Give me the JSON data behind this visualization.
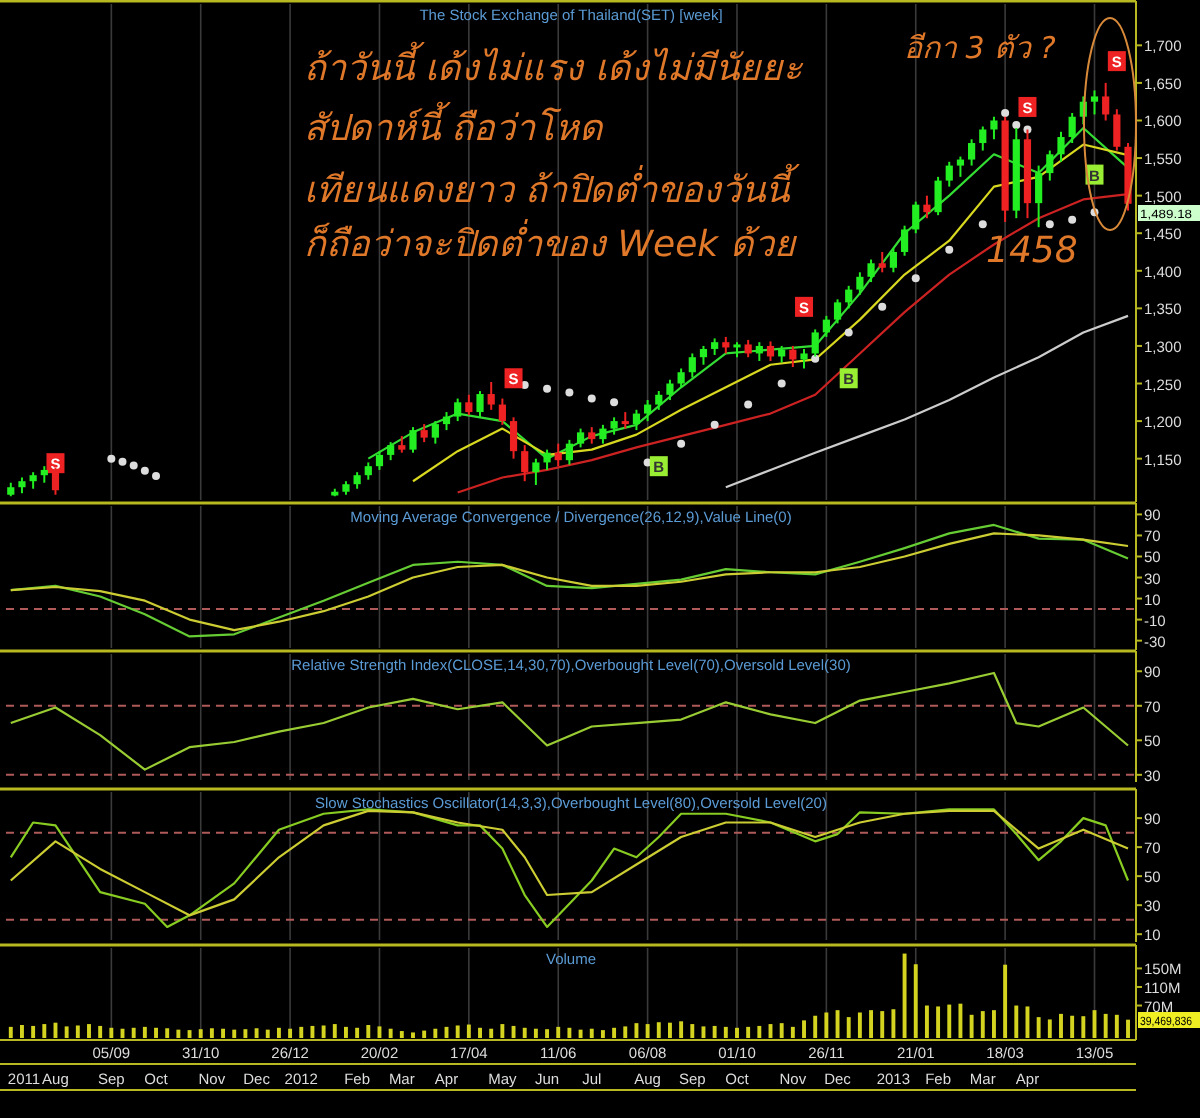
{
  "chart_data": [
    {
      "type": "candlestick",
      "title": "The Stock Exchange of Thailand(SET) [week]",
      "grid": "x",
      "tick_labels": "y",
      "xlim": [
        "2011-07-01",
        "2013-06-08"
      ],
      "ylim": [
        1095,
        1755
      ],
      "xticks": [
        "2011-09-05",
        "2011-10-31",
        "2011-12-26",
        "2012-02-20",
        "2012-04-16",
        "2012-06-11",
        "2012-08-06",
        "2012-10-01",
        "2012-11-26",
        "2013-01-21",
        "2013-03-18",
        "2013-05-13"
      ],
      "yticks": [
        {
          "value": 1150,
          "label": "1,150"
        },
        {
          "value": 1200,
          "label": "1,200"
        },
        {
          "value": 1250,
          "label": "1,250"
        },
        {
          "value": 1300,
          "label": "1,300"
        },
        {
          "value": 1350,
          "label": "1,350"
        },
        {
          "value": 1400,
          "label": "1,400"
        },
        {
          "value": 1450,
          "label": "1,450"
        },
        {
          "value": 1500,
          "label": "1,500"
        },
        {
          "value": 1550,
          "label": "1,550"
        },
        {
          "value": 1600,
          "label": "1,600"
        },
        {
          "value": 1650,
          "label": "1,650"
        },
        {
          "value": 1700,
          "label": "1,700"
        }
      ],
      "x": [
        "2011-07-04",
        "2011-07-11",
        "2011-07-18",
        "2011-07-25",
        "2011-08-01",
        "2012-01-23",
        "2012-01-30",
        "2012-02-06",
        "2012-02-13",
        "2012-02-20",
        "2012-02-27",
        "2012-03-05",
        "2012-03-12",
        "2012-03-19",
        "2012-03-26",
        "2012-04-02",
        "2012-04-09",
        "2012-04-16",
        "2012-04-23",
        "2012-04-30",
        "2012-05-07",
        "2012-05-14",
        "2012-05-21",
        "2012-05-28",
        "2012-06-04",
        "2012-06-11",
        "2012-06-18",
        "2012-06-25",
        "2012-07-02",
        "2012-07-09",
        "2012-07-16",
        "2012-07-23",
        "2012-07-30",
        "2012-08-06",
        "2012-08-13",
        "2012-08-20",
        "2012-08-27",
        "2012-09-03",
        "2012-09-10",
        "2012-09-17",
        "2012-09-24",
        "2012-10-01",
        "2012-10-08",
        "2012-10-15",
        "2012-10-22",
        "2012-10-29",
        "2012-11-05",
        "2012-11-12",
        "2012-11-19",
        "2012-11-26",
        "2012-12-03",
        "2012-12-10",
        "2012-12-17",
        "2012-12-24",
        "2012-12-31",
        "2013-01-07",
        "2013-01-14",
        "2013-01-21",
        "2013-01-28",
        "2013-02-04",
        "2013-02-11",
        "2013-02-18",
        "2013-02-25",
        "2013-03-04",
        "2013-03-11",
        "2013-03-18",
        "2013-03-25",
        "2013-04-01",
        "2013-04-08",
        "2013-04-15",
        "2013-04-22",
        "2013-04-29",
        "2013-05-06",
        "2013-05-13",
        "2013-05-20",
        "2013-05-27",
        "2013-06-03"
      ],
      "ohlc": [
        [
          1102,
          1118,
          1100,
          1112
        ],
        [
          1112,
          1125,
          1104,
          1120
        ],
        [
          1120,
          1132,
          1110,
          1128
        ],
        [
          1128,
          1140,
          1118,
          1135
        ],
        [
          1135,
          1138,
          1102,
          1108
        ],
        [
          1101,
          1110,
          1100,
          1106
        ],
        [
          1106,
          1120,
          1102,
          1116
        ],
        [
          1116,
          1132,
          1110,
          1128
        ],
        [
          1128,
          1145,
          1122,
          1140
        ],
        [
          1140,
          1160,
          1135,
          1155
        ],
        [
          1155,
          1172,
          1148,
          1168
        ],
        [
          1168,
          1180,
          1158,
          1162
        ],
        [
          1162,
          1192,
          1158,
          1188
        ],
        [
          1188,
          1196,
          1172,
          1178
        ],
        [
          1178,
          1200,
          1170,
          1196
        ],
        [
          1196,
          1212,
          1188,
          1206
        ],
        [
          1206,
          1230,
          1200,
          1225
        ],
        [
          1225,
          1235,
          1208,
          1212
        ],
        [
          1212,
          1240,
          1205,
          1236
        ],
        [
          1236,
          1252,
          1215,
          1222
        ],
        [
          1222,
          1230,
          1195,
          1200
        ],
        [
          1200,
          1205,
          1150,
          1160
        ],
        [
          1160,
          1168,
          1120,
          1132
        ],
        [
          1132,
          1150,
          1115,
          1145
        ],
        [
          1145,
          1162,
          1135,
          1158
        ],
        [
          1158,
          1170,
          1140,
          1148
        ],
        [
          1148,
          1175,
          1142,
          1170
        ],
        [
          1170,
          1190,
          1165,
          1185
        ],
        [
          1185,
          1192,
          1170,
          1176
        ],
        [
          1176,
          1195,
          1170,
          1190
        ],
        [
          1190,
          1205,
          1182,
          1200
        ],
        [
          1200,
          1212,
          1190,
          1196
        ],
        [
          1196,
          1215,
          1188,
          1210
        ],
        [
          1210,
          1228,
          1200,
          1222
        ],
        [
          1222,
          1240,
          1215,
          1235
        ],
        [
          1235,
          1255,
          1228,
          1250
        ],
        [
          1250,
          1270,
          1245,
          1265
        ],
        [
          1265,
          1290,
          1258,
          1285
        ],
        [
          1285,
          1300,
          1275,
          1296
        ],
        [
          1296,
          1310,
          1288,
          1305
        ],
        [
          1305,
          1312,
          1290,
          1298
        ],
        [
          1298,
          1305,
          1285,
          1302
        ],
        [
          1302,
          1308,
          1285,
          1290
        ],
        [
          1290,
          1305,
          1280,
          1300
        ],
        [
          1300,
          1306,
          1280,
          1286
        ],
        [
          1286,
          1300,
          1278,
          1295
        ],
        [
          1295,
          1300,
          1272,
          1282
        ],
        [
          1282,
          1296,
          1270,
          1290
        ],
        [
          1290,
          1322,
          1286,
          1318
        ],
        [
          1318,
          1340,
          1312,
          1335
        ],
        [
          1335,
          1362,
          1330,
          1358
        ],
        [
          1358,
          1380,
          1350,
          1375
        ],
        [
          1375,
          1398,
          1368,
          1392
        ],
        [
          1392,
          1415,
          1385,
          1410
        ],
        [
          1410,
          1425,
          1398,
          1404
        ],
        [
          1404,
          1430,
          1398,
          1425
        ],
        [
          1425,
          1460,
          1420,
          1455
        ],
        [
          1455,
          1492,
          1450,
          1488
        ],
        [
          1488,
          1500,
          1470,
          1478
        ],
        [
          1478,
          1525,
          1474,
          1520
        ],
        [
          1520,
          1545,
          1512,
          1540
        ],
        [
          1540,
          1552,
          1525,
          1548
        ],
        [
          1548,
          1575,
          1540,
          1570
        ],
        [
          1570,
          1592,
          1560,
          1588
        ],
        [
          1588,
          1605,
          1575,
          1600
        ],
        [
          1600,
          1605,
          1465,
          1480
        ],
        [
          1480,
          1590,
          1470,
          1575
        ],
        [
          1575,
          1588,
          1470,
          1490
        ],
        [
          1490,
          1540,
          1458,
          1530
        ],
        [
          1530,
          1560,
          1520,
          1555
        ],
        [
          1555,
          1585,
          1545,
          1578
        ],
        [
          1578,
          1610,
          1570,
          1605
        ],
        [
          1605,
          1632,
          1595,
          1625
        ],
        [
          1625,
          1640,
          1608,
          1632
        ],
        [
          1632,
          1650,
          1600,
          1608
        ],
        [
          1608,
          1615,
          1560,
          1565
        ],
        [
          1565,
          1570,
          1480,
          1489.18
        ]
      ],
      "series": [
        {
          "type": "line",
          "color": "#33dd33",
          "x": [
            "2012-02-13",
            "2012-03-12",
            "2012-04-09",
            "2012-05-07",
            "2012-06-04",
            "2012-07-02",
            "2012-07-30",
            "2012-08-27",
            "2012-09-24",
            "2012-10-22",
            "2012-11-19",
            "2012-12-17",
            "2013-01-14",
            "2013-02-11",
            "2013-03-11",
            "2013-04-08",
            "2013-05-06",
            "2013-06-03"
          ],
          "values": [
            1150,
            1185,
            1210,
            1200,
            1150,
            1180,
            1195,
            1245,
            1290,
            1295,
            1300,
            1370,
            1450,
            1500,
            1555,
            1530,
            1590,
            1537
          ]
        },
        {
          "type": "line",
          "color": "#d8d820",
          "x": [
            "2012-03-12",
            "2012-04-09",
            "2012-05-07",
            "2012-06-04",
            "2012-07-02",
            "2012-07-30",
            "2012-08-27",
            "2012-09-24",
            "2012-10-22",
            "2012-11-19",
            "2012-12-17",
            "2013-01-14",
            "2013-02-11",
            "2013-03-11",
            "2013-04-08",
            "2013-05-06",
            "2013-06-03"
          ],
          "values": [
            1120,
            1160,
            1190,
            1155,
            1162,
            1182,
            1215,
            1245,
            1275,
            1282,
            1335,
            1395,
            1440,
            1512,
            1525,
            1568,
            1554
          ]
        },
        {
          "type": "line",
          "color": "#cc2222",
          "x": [
            "2012-04-09",
            "2012-05-07",
            "2012-06-04",
            "2012-07-02",
            "2012-07-30",
            "2012-08-27",
            "2012-09-24",
            "2012-10-22",
            "2012-11-19",
            "2012-12-17",
            "2013-01-14",
            "2013-02-11",
            "2013-03-11",
            "2013-04-08",
            "2013-05-06",
            "2013-06-03"
          ],
          "values": [
            1105,
            1125,
            1135,
            1148,
            1165,
            1180,
            1195,
            1210,
            1235,
            1290,
            1345,
            1395,
            1435,
            1470,
            1495,
            1502
          ]
        },
        {
          "type": "line",
          "color": "#cccccc",
          "x": [
            "2012-09-24",
            "2012-10-22",
            "2012-11-19",
            "2012-12-17",
            "2013-01-14",
            "2013-02-11",
            "2013-03-11",
            "2013-04-08",
            "2013-05-06",
            "2013-06-03"
          ],
          "values": [
            1112,
            1135,
            1158,
            1180,
            1202,
            1228,
            1258,
            1285,
            1318,
            1340
          ]
        },
        {
          "type": "scatter",
          "color": "#dddddd",
          "marker": "circle",
          "x": [
            "2011-09-05",
            "2011-09-12",
            "2011-09-19",
            "2011-09-26",
            "2011-10-03",
            "2012-05-21",
            "2012-06-04",
            "2012-06-18",
            "2012-07-02",
            "2012-07-16",
            "2012-08-06",
            "2012-08-27",
            "2012-09-17",
            "2012-10-08",
            "2012-10-29",
            "2012-11-19",
            "2012-12-10",
            "2012-12-31",
            "2013-01-21",
            "2013-02-11",
            "2013-03-04",
            "2013-03-18",
            "2013-03-25",
            "2013-04-01",
            "2013-04-15",
            "2013-04-29",
            "2013-05-13"
          ],
          "values": [
            1150,
            1146,
            1141,
            1134,
            1127,
            1248,
            1243,
            1238,
            1230,
            1225,
            1145,
            1170,
            1195,
            1222,
            1250,
            1283,
            1318,
            1352,
            1390,
            1428,
            1462,
            1610,
            1594,
            1588,
            1462,
            1468,
            1478
          ]
        },
        {
          "type": "scatter",
          "color": "#ee2222",
          "marker": "square",
          "x": [
            "2011-08-01",
            "2012-05-14",
            "2012-11-12",
            "2013-04-01",
            "2013-05-27"
          ],
          "values": [
            1144,
            1257,
            1352,
            1618,
            1679
          ],
          "value_labels": [
            "S",
            "S",
            "S",
            "S",
            "S"
          ]
        },
        {
          "type": "scatter",
          "color": "#99ee33",
          "marker": "square",
          "x": [
            "2012-08-13",
            "2012-12-10",
            "2013-05-13"
          ],
          "values": [
            1140,
            1257,
            1528
          ],
          "value_labels": [
            "B",
            "B",
            "B"
          ]
        }
      ],
      "annotations": [
        "ถ้าวันนี้ เด้งไม่แรง เด้งไม่มีนัยยะ",
        "สัปดาห์นี้ ถือว่าโหด",
        "เทียนแดงยาว ถ้าปิดต่ำของวันนี้",
        "ก็ถือว่าจะปิดต่ำของ Week ด้วย",
        "อีกา 3 ตัว ?",
        "1458",
        "1,489.18"
      ]
    },
    {
      "type": "line",
      "title": "Moving Average Convergence / Divergence(26,12,9),Value Line(0)",
      "grid": "x",
      "tick_labels": "y",
      "xlim": [
        "2011-07-01",
        "2013-06-08"
      ],
      "ylim": [
        -37,
        98
      ],
      "xticks": [
        "2011-09-05",
        "2011-10-31",
        "2011-12-26",
        "2012-02-20",
        "2012-04-16",
        "2012-06-11",
        "2012-08-06",
        "2012-10-01",
        "2012-11-26",
        "2013-01-21",
        "2013-03-18",
        "2013-05-13"
      ],
      "yticks": [
        90,
        70,
        50,
        30,
        10,
        -10,
        -30
      ],
      "ref_lines": [
        {
          "axis": "y",
          "value": 0,
          "color": "#b05a5a",
          "line_style": "dashed"
        }
      ],
      "series": [
        {
          "color": "#66cc33",
          "x": [
            "2011-07-04",
            "2011-08-01",
            "2011-08-29",
            "2011-09-26",
            "2011-10-24",
            "2011-11-21",
            "2011-12-19",
            "2012-01-16",
            "2012-02-13",
            "2012-03-12",
            "2012-04-09",
            "2012-05-07",
            "2012-06-04",
            "2012-07-02",
            "2012-07-30",
            "2012-08-27",
            "2012-09-24",
            "2012-10-22",
            "2012-11-19",
            "2012-12-17",
            "2013-01-14",
            "2013-02-11",
            "2013-03-11",
            "2013-04-08",
            "2013-05-06",
            "2013-06-03"
          ],
          "values": [
            18,
            22,
            12,
            -5,
            -26,
            -24,
            -8,
            8,
            25,
            42,
            45,
            42,
            22,
            20,
            24,
            28,
            38,
            35,
            33,
            45,
            58,
            72,
            80,
            67,
            66,
            48
          ]
        },
        {
          "color": "#cccc33",
          "x": [
            "2011-07-04",
            "2011-08-01",
            "2011-08-29",
            "2011-09-26",
            "2011-10-24",
            "2011-11-21",
            "2011-12-19",
            "2012-01-16",
            "2012-02-13",
            "2012-03-12",
            "2012-04-09",
            "2012-05-07",
            "2012-06-04",
            "2012-07-02",
            "2012-07-30",
            "2012-08-27",
            "2012-09-24",
            "2012-10-22",
            "2012-11-19",
            "2012-12-17",
            "2013-01-14",
            "2013-02-11",
            "2013-03-11",
            "2013-04-08",
            "2013-05-06",
            "2013-06-03"
          ],
          "values": [
            18,
            21,
            17,
            8,
            -10,
            -20,
            -12,
            -2,
            12,
            30,
            40,
            42,
            30,
            22,
            22,
            26,
            33,
            35,
            35,
            40,
            50,
            62,
            72,
            70,
            66,
            60
          ]
        }
      ]
    },
    {
      "type": "line",
      "title": "Relative Strength Index(CLOSE,14,30,70),Overbought Level(70),Oversold Level(30)",
      "grid": "x",
      "tick_labels": "y",
      "xlim": [
        "2011-07-01",
        "2013-06-08"
      ],
      "ylim": [
        27,
        100
      ],
      "xticks": [
        "2011-09-05",
        "2011-10-31",
        "2011-12-26",
        "2012-02-20",
        "2012-04-16",
        "2012-06-11",
        "2012-08-06",
        "2012-10-01",
        "2012-11-26",
        "2013-01-21",
        "2013-03-18",
        "2013-05-13"
      ],
      "yticks": [
        30,
        50,
        70,
        90
      ],
      "ref_lines": [
        {
          "axis": "y",
          "value": 70,
          "color": "#b05a5a",
          "line_style": "dashed"
        },
        {
          "axis": "y",
          "value": 30,
          "color": "#b05a5a",
          "line_style": "dashed"
        }
      ],
      "series": [
        {
          "color": "#99cc33",
          "x": [
            "2011-07-04",
            "2011-08-01",
            "2011-08-29",
            "2011-09-26",
            "2011-10-24",
            "2011-11-21",
            "2011-12-19",
            "2012-01-16",
            "2012-02-13",
            "2012-03-12",
            "2012-04-09",
            "2012-05-07",
            "2012-06-04",
            "2012-07-02",
            "2012-07-30",
            "2012-08-27",
            "2012-09-24",
            "2012-10-22",
            "2012-11-19",
            "2012-12-17",
            "2013-01-14",
            "2013-02-11",
            "2013-03-11",
            "2013-03-25",
            "2013-04-08",
            "2013-05-06",
            "2013-06-03"
          ],
          "values": [
            60,
            69,
            53,
            33,
            46,
            49,
            55,
            60,
            69,
            74,
            68,
            72,
            47,
            58,
            60,
            62,
            72,
            65,
            60,
            73,
            78,
            83,
            89,
            60,
            58,
            69,
            47
          ]
        }
      ]
    },
    {
      "type": "line",
      "title": "Slow Stochastics Oscillator(14,3,3),Overbought Level(80),Oversold Level(20)",
      "grid": "x",
      "tick_labels": "y",
      "xlim": [
        "2011-07-01",
        "2013-06-08"
      ],
      "ylim": [
        6,
        108
      ],
      "xticks": [
        "2011-09-05",
        "2011-10-31",
        "2011-12-26",
        "2012-02-20",
        "2012-04-16",
        "2012-06-11",
        "2012-08-06",
        "2012-10-01",
        "2012-11-26",
        "2013-01-21",
        "2013-03-18",
        "2013-05-13"
      ],
      "yticks": [
        10,
        30,
        50,
        70,
        90
      ],
      "ref_lines": [
        {
          "axis": "y",
          "value": 80,
          "color": "#b05a5a",
          "line_style": "dashed"
        },
        {
          "axis": "y",
          "value": 20,
          "color": "#b05a5a",
          "line_style": "dashed"
        }
      ],
      "series": [
        {
          "color": "#88cc22",
          "x": [
            "2011-07-04",
            "2011-07-18",
            "2011-08-01",
            "2011-08-29",
            "2011-09-26",
            "2011-10-10",
            "2011-10-24",
            "2011-11-21",
            "2011-12-19",
            "2012-01-16",
            "2012-02-13",
            "2012-03-12",
            "2012-04-09",
            "2012-04-23",
            "2012-05-07",
            "2012-05-21",
            "2012-06-04",
            "2012-07-02",
            "2012-07-16",
            "2012-07-30",
            "2012-08-13",
            "2012-08-27",
            "2012-09-24",
            "2012-10-22",
            "2012-11-19",
            "2012-12-03",
            "2012-12-17",
            "2013-01-14",
            "2013-02-11",
            "2013-03-11",
            "2013-03-25",
            "2013-04-08",
            "2013-04-22",
            "2013-05-06",
            "2013-05-20",
            "2013-06-03"
          ],
          "values": [
            63,
            87,
            85,
            39,
            31,
            15,
            23,
            45,
            82,
            93,
            96,
            94,
            85,
            85,
            69,
            37,
            15,
            47,
            69,
            63,
            77,
            93,
            93,
            87,
            74,
            79,
            94,
            93,
            96,
            96,
            79,
            61,
            74,
            90,
            85,
            47
          ]
        },
        {
          "color": "#cccc33",
          "x": [
            "2011-07-04",
            "2011-08-01",
            "2011-08-29",
            "2011-09-26",
            "2011-10-24",
            "2011-11-21",
            "2011-12-19",
            "2012-01-16",
            "2012-02-13",
            "2012-03-12",
            "2012-04-09",
            "2012-05-07",
            "2012-05-21",
            "2012-06-04",
            "2012-07-02",
            "2012-07-30",
            "2012-08-27",
            "2012-09-24",
            "2012-10-22",
            "2012-11-19",
            "2012-12-17",
            "2013-01-14",
            "2013-02-11",
            "2013-03-11",
            "2013-04-08",
            "2013-05-06",
            "2013-06-03"
          ],
          "values": [
            47,
            74,
            55,
            39,
            23,
            34,
            63,
            85,
            95,
            94,
            87,
            82,
            63,
            37,
            39,
            58,
            77,
            87,
            87,
            77,
            87,
            93,
            95,
            95,
            69,
            82,
            69
          ]
        }
      ]
    },
    {
      "type": "bar",
      "title": "Volume",
      "grid": "x",
      "xlim": [
        "2011-07-01",
        "2013-06-08"
      ],
      "ylim": [
        0,
        194
      ],
      "color": "#d4d420",
      "xticks": [
        {
          "value": "2011-09-05",
          "label": "05/09"
        },
        {
          "value": "2011-10-31",
          "label": "31/10"
        },
        {
          "value": "2011-12-26",
          "label": "26/12"
        },
        {
          "value": "2012-02-20",
          "label": "20/02"
        },
        {
          "value": "2012-04-16",
          "label": "17/04"
        },
        {
          "value": "2012-06-11",
          "label": "11/06"
        },
        {
          "value": "2012-08-06",
          "label": "06/08"
        },
        {
          "value": "2012-10-01",
          "label": "01/10"
        },
        {
          "value": "2012-11-26",
          "label": "26/11"
        },
        {
          "value": "2013-01-21",
          "label": "21/01"
        },
        {
          "value": "2013-03-18",
          "label": "18/03"
        },
        {
          "value": "2013-05-13",
          "label": "13/05"
        }
      ],
      "x2lim": [
        "2011-07-01",
        "2013-06-08"
      ],
      "x2ticks": [
        {
          "value": "2011-07-04",
          "label": "2011"
        },
        {
          "value": "2011-08-01",
          "label": "Aug"
        },
        {
          "value": "2011-09-05",
          "label": "Sep"
        },
        {
          "value": "2011-10-03",
          "label": "Oct"
        },
        {
          "value": "2011-11-07",
          "label": "Nov"
        },
        {
          "value": "2011-12-05",
          "label": "Dec"
        },
        {
          "value": "2012-01-02",
          "label": "2012"
        },
        {
          "value": "2012-02-06",
          "label": "Feb"
        },
        {
          "value": "2012-03-05",
          "label": "Mar"
        },
        {
          "value": "2012-04-02",
          "label": "Apr"
        },
        {
          "value": "2012-05-07",
          "label": "May"
        },
        {
          "value": "2012-06-04",
          "label": "Jun"
        },
        {
          "value": "2012-07-02",
          "label": "Jul"
        },
        {
          "value": "2012-08-06",
          "label": "Aug"
        },
        {
          "value": "2012-09-03",
          "label": "Sep"
        },
        {
          "value": "2012-10-01",
          "label": "Oct"
        },
        {
          "value": "2012-11-05",
          "label": "Nov"
        },
        {
          "value": "2012-12-03",
          "label": "Dec"
        },
        {
          "value": "2013-01-07",
          "label": "2013"
        },
        {
          "value": "2013-02-04",
          "label": "Feb"
        },
        {
          "value": "2013-03-04",
          "label": "Mar"
        },
        {
          "value": "2013-04-01",
          "label": "Apr"
        }
      ],
      "yticks": [
        {
          "value": 70,
          "label": "70M"
        },
        {
          "value": 110,
          "label": "110M"
        },
        {
          "value": 150,
          "label": "150M"
        }
      ],
      "x": [
        "2011-07-04",
        "2011-07-11",
        "2011-07-18",
        "2011-07-25",
        "2011-08-01",
        "2011-08-08",
        "2011-08-15",
        "2011-08-22",
        "2011-08-29",
        "2011-09-05",
        "2011-09-12",
        "2011-09-19",
        "2011-09-26",
        "2011-10-03",
        "2011-10-10",
        "2011-10-17",
        "2011-10-24",
        "2011-10-31",
        "2011-11-07",
        "2011-11-14",
        "2011-11-21",
        "2011-11-28",
        "2011-12-05",
        "2011-12-12",
        "2011-12-19",
        "2011-12-26",
        "2012-01-02",
        "2012-01-09",
        "2012-01-16",
        "2012-01-23",
        "2012-01-30",
        "2012-02-06",
        "2012-02-13",
        "2012-02-20",
        "2012-02-27",
        "2012-03-05",
        "2012-03-12",
        "2012-03-19",
        "2012-03-26",
        "2012-04-02",
        "2012-04-09",
        "2012-04-16",
        "2012-04-23",
        "2012-04-30",
        "2012-05-07",
        "2012-05-14",
        "2012-05-21",
        "2012-05-28",
        "2012-06-04",
        "2012-06-11",
        "2012-06-18",
        "2012-06-25",
        "2012-07-02",
        "2012-07-09",
        "2012-07-16",
        "2012-07-23",
        "2012-07-30",
        "2012-08-06",
        "2012-08-13",
        "2012-08-20",
        "2012-08-27",
        "2012-09-03",
        "2012-09-10",
        "2012-09-17",
        "2012-09-24",
        "2012-10-01",
        "2012-10-08",
        "2012-10-15",
        "2012-10-22",
        "2012-10-29",
        "2012-11-05",
        "2012-11-12",
        "2012-11-19",
        "2012-11-26",
        "2012-12-03",
        "2012-12-10",
        "2012-12-17",
        "2012-12-24",
        "2012-12-31",
        "2013-01-07",
        "2013-01-14",
        "2013-01-21",
        "2013-01-28",
        "2013-02-04",
        "2013-02-11",
        "2013-02-18",
        "2013-02-25",
        "2013-03-04",
        "2013-03-11",
        "2013-03-18",
        "2013-03-25",
        "2013-04-01",
        "2013-04-08",
        "2013-04-15",
        "2013-04-22",
        "2013-04-29",
        "2013-05-06",
        "2013-05-13",
        "2013-05-20",
        "2013-05-27",
        "2013-06-03"
      ],
      "values": [
        24,
        28,
        26,
        30,
        33,
        25,
        27,
        30,
        26,
        22,
        20,
        22,
        24,
        22,
        21,
        18,
        17,
        19,
        21,
        20,
        18,
        19,
        21,
        18,
        22,
        20,
        24,
        26,
        27,
        30,
        24,
        22,
        28,
        25,
        20,
        15,
        12,
        16,
        20,
        24,
        27,
        29,
        22,
        20,
        30,
        26,
        22,
        20,
        19,
        24,
        22,
        18,
        20,
        17,
        22,
        25,
        32,
        30,
        34,
        33,
        36,
        30,
        25,
        26,
        24,
        22,
        24,
        26,
        30,
        32,
        24,
        38,
        48,
        55,
        60,
        45,
        55,
        60,
        58,
        62,
        182,
        159,
        70,
        68,
        72,
        74,
        50,
        58,
        60,
        158,
        70,
        68,
        45,
        40,
        52,
        48,
        47,
        60,
        52,
        50,
        39.5
      ],
      "annotations": [
        "39,469,836"
      ]
    }
  ]
}
